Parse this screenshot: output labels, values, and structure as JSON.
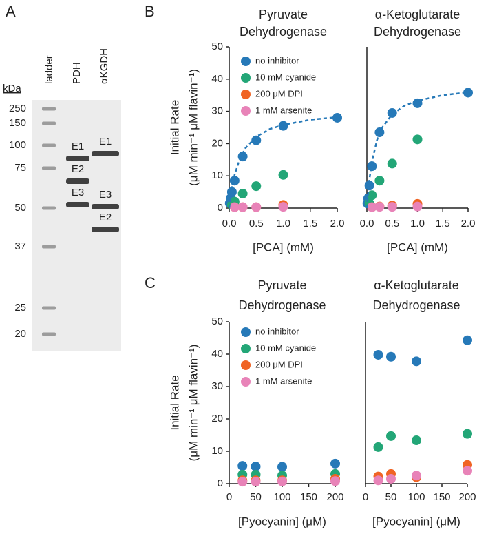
{
  "panels": [
    "A",
    "B",
    "C"
  ],
  "gel": {
    "unit": "kDa",
    "lanes": [
      "ladder",
      "PDH",
      "αKGDH"
    ],
    "markers": [
      "250",
      "150",
      "100",
      "75",
      "50",
      "37",
      "25",
      "20"
    ],
    "band_labels": [
      [
        "E1",
        "E2",
        "E3"
      ],
      [
        "E1",
        "E3",
        "E2"
      ]
    ]
  },
  "chart_data": [
    {
      "type": "scatter",
      "title": [
        "Pyruvate",
        "Dehydrogenase"
      ],
      "xlabel": "[PCA] (mM)",
      "ylabel": [
        "Initial Rate",
        "(μM min⁻¹ μM flavin⁻¹)"
      ],
      "legend": "upper left",
      "xlim": [
        0,
        2
      ],
      "xticks": [
        {
          "value": 0,
          "label": "0.0"
        },
        0.5,
        {
          "value": 1,
          "label": "1.0"
        },
        1.5,
        {
          "value": 2,
          "label": "2.0"
        }
      ],
      "ylim": [
        0,
        50
      ],
      "yticks": [
        0,
        10,
        20,
        30,
        40,
        50
      ],
      "series": [
        {
          "name": "no inhibitor",
          "color": "#2679b8",
          "x": [
            0.01,
            0.025,
            0.05,
            0.1,
            0.25,
            0.5,
            1,
            2
          ],
          "values": [
            1.5,
            3,
            5,
            8.5,
            16,
            21,
            25.5,
            28
          ]
        },
        {
          "name": "10 mM cyanide",
          "color": "#23a677",
          "x": [
            0.05,
            0.1,
            0.25,
            0.5,
            1
          ],
          "values": [
            1,
            2,
            4.5,
            6.8,
            10.3
          ]
        },
        {
          "name": "200 μM DPI",
          "color": "#f06424",
          "x": [
            0.1,
            0.25,
            0.5,
            1
          ],
          "values": [
            0.3,
            0.3,
            0.3,
            1
          ]
        },
        {
          "name": "1 mM arsenite",
          "color": "#e883b8",
          "x": [
            0.1,
            0.25,
            0.5,
            1
          ],
          "values": [
            0.3,
            0.3,
            0.3,
            0.4
          ]
        },
        {
          "type": "line",
          "style": "dashed",
          "color": "#2679b8",
          "x": [
            0,
            0.05,
            0.1,
            0.2,
            0.3,
            0.5,
            0.75,
            1,
            1.5,
            2
          ],
          "values": [
            0,
            6.2,
            10.3,
            15.5,
            18.6,
            22.1,
            24.5,
            25.8,
            27.4,
            28.2
          ]
        }
      ]
    },
    {
      "type": "scatter",
      "title": [
        "α-Ketoglutarate",
        "Dehydrogenase"
      ],
      "xlabel": "[PCA] (mM)",
      "xlim": [
        0,
        2
      ],
      "xticks": [
        {
          "value": 0,
          "label": "0.0"
        },
        0.5,
        {
          "value": 1,
          "label": "1.0"
        },
        1.5,
        {
          "value": 2,
          "label": "2.0"
        }
      ],
      "ylim": [
        0,
        50
      ],
      "series": [
        {
          "color": "#2679b8",
          "x": [
            0.01,
            0.025,
            0.05,
            0.1,
            0.25,
            0.5,
            1,
            2
          ],
          "values": [
            1.5,
            3,
            7,
            13,
            23.5,
            29.5,
            32.5,
            35.8
          ]
        },
        {
          "color": "#23a677",
          "x": [
            0.05,
            0.1,
            0.25,
            0.5,
            1
          ],
          "values": [
            1.5,
            4,
            8.5,
            13.8,
            21.3
          ]
        },
        {
          "color": "#f06424",
          "x": [
            0.1,
            0.25,
            0.5,
            1
          ],
          "values": [
            0.3,
            0.5,
            0.8,
            1.3
          ]
        },
        {
          "color": "#e883b8",
          "x": [
            0.1,
            0.25,
            0.5,
            1
          ],
          "values": [
            0.3,
            0.4,
            0.4,
            0.5
          ]
        },
        {
          "type": "line",
          "style": "dashed",
          "color": "#2679b8",
          "x": [
            0,
            0.025,
            0.05,
            0.1,
            0.2,
            0.3,
            0.5,
            0.75,
            1,
            1.5,
            2
          ],
          "values": [
            0,
            5,
            8.9,
            14.4,
            21.1,
            24.9,
            29.1,
            31.8,
            33.3,
            35,
            35.9
          ]
        }
      ]
    },
    {
      "type": "scatter",
      "title": [
        "Pyruvate",
        "Dehydrogenase"
      ],
      "xlabel": "[Pyocyanin] (μM)",
      "ylabel": [
        "Initial Rate",
        "(μM min⁻¹ μM flavin⁻¹)"
      ],
      "legend": "upper left",
      "xlim": [
        0,
        200
      ],
      "xticks": [
        0,
        50,
        100,
        150,
        200
      ],
      "ylim": [
        0,
        50
      ],
      "yticks": [
        0,
        10,
        20,
        30,
        40,
        50
      ],
      "series": [
        {
          "name": "no inhibitor",
          "color": "#2679b8",
          "x": [
            25,
            50,
            100,
            200
          ],
          "values": [
            5.5,
            5.3,
            5.2,
            6.2
          ]
        },
        {
          "name": "10 mM cyanide",
          "color": "#23a677",
          "x": [
            25,
            50,
            100,
            200
          ],
          "values": [
            2.8,
            2.8,
            2.5,
            3
          ]
        },
        {
          "name": "200 μM DPI",
          "color": "#f06424",
          "x": [
            25,
            50,
            100,
            200
          ],
          "values": [
            1,
            1,
            1,
            1.5
          ]
        },
        {
          "name": "1 mM arsenite",
          "color": "#e883b8",
          "x": [
            25,
            50,
            100,
            200
          ],
          "values": [
            0.6,
            0.6,
            0.7,
            0.8
          ]
        }
      ]
    },
    {
      "type": "scatter",
      "title": [
        "α-Ketoglutarate",
        "Dehydrogenase"
      ],
      "xlabel": "[Pyocyanin] (μM)",
      "xlim": [
        0,
        200
      ],
      "xticks": [
        0,
        50,
        100,
        150,
        200
      ],
      "ylim": [
        0,
        50
      ],
      "series": [
        {
          "color": "#2679b8",
          "x": [
            25,
            50,
            100,
            200
          ],
          "values": [
            39.8,
            39.2,
            37.8,
            44.3
          ]
        },
        {
          "color": "#23a677",
          "x": [
            25,
            50,
            100,
            200
          ],
          "values": [
            11.3,
            14.7,
            13.4,
            15.4
          ]
        },
        {
          "color": "#f06424",
          "x": [
            25,
            50,
            100,
            200
          ],
          "values": [
            2.2,
            3,
            2,
            5.8
          ]
        },
        {
          "color": "#e883b8",
          "x": [
            25,
            50,
            100,
            200
          ],
          "values": [
            1,
            1.5,
            2.5,
            4
          ]
        }
      ]
    }
  ]
}
